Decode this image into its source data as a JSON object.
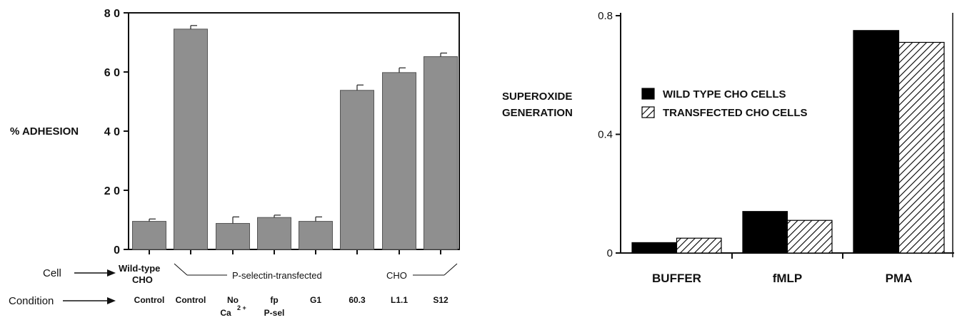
{
  "chart_data": [
    {
      "type": "bar",
      "ylabel": "% ADHESION",
      "ylim": [
        0,
        80
      ],
      "yticks": [
        "0",
        "2 0",
        "4 0",
        "6 0",
        "8 0"
      ],
      "categories": [
        "Control",
        "Control",
        "No Ca2+",
        "fp P-sel",
        "G1",
        "60.3",
        "L1.1",
        "S12"
      ],
      "values": [
        9.5,
        74.5,
        8.8,
        10.8,
        9.5,
        53.8,
        59.8,
        65.2
      ],
      "errors": [
        0.8,
        1.2,
        2.2,
        0.8,
        1.5,
        1.8,
        1.6,
        1.2
      ],
      "bar_color": "#8f8f8f",
      "cell_row": {
        "label": "Cell",
        "group1_line1": "Wild-type",
        "group1_line2": "CHO",
        "group2": "P-selectin-transfected",
        "group2_suffix": "CHO"
      },
      "condition_row": {
        "label": "Condition",
        "labels": [
          {
            "line1": "Control",
            "line2": ""
          },
          {
            "line1": "Control",
            "line2": ""
          },
          {
            "line1": "No",
            "line2": "Ca",
            "sup": "2 +"
          },
          {
            "line1": "fp",
            "line2": "P-sel"
          },
          {
            "line1": "G1",
            "line2": ""
          },
          {
            "line1": "60.3",
            "line2": ""
          },
          {
            "line1": "L1.1",
            "line2": ""
          },
          {
            "line1": "S12",
            "line2": ""
          }
        ]
      }
    },
    {
      "type": "bar",
      "ylabel_line1": "SUPEROXIDE",
      "ylabel_line2": "GENERATION",
      "ylim": [
        0,
        0.8
      ],
      "yticks": [
        "0",
        "0.4",
        "0.8"
      ],
      "categories": [
        "BUFFER",
        "fMLP",
        "PMA"
      ],
      "series": [
        {
          "name": "WILD TYPE CHO CELLS",
          "values": [
            0.035,
            0.14,
            0.75
          ],
          "fill": "solid",
          "color": "#000000"
        },
        {
          "name": "TRANSFECTED CHO CELLS",
          "values": [
            0.05,
            0.11,
            0.71
          ],
          "fill": "hatched",
          "color": "#000000"
        }
      ],
      "legend": "top-left"
    }
  ]
}
